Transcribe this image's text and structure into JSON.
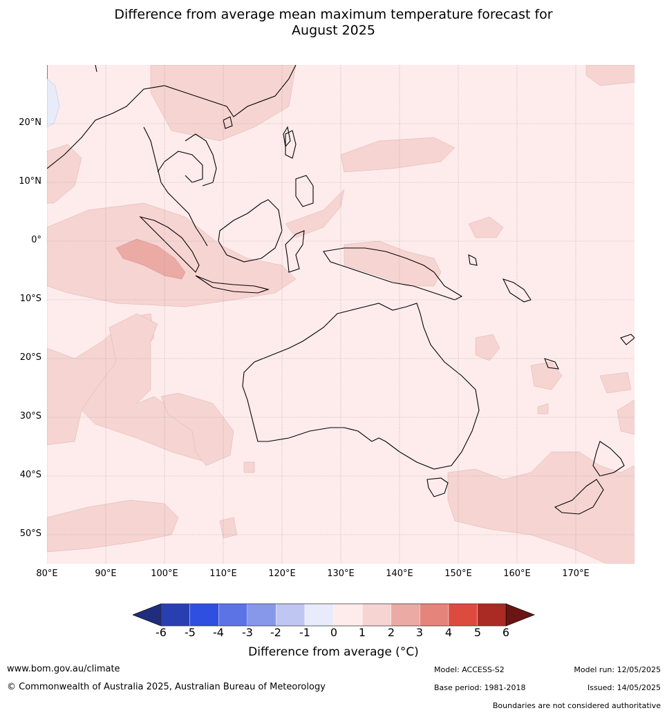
{
  "title": {
    "line1": "Difference from average mean maximum temperature forecast for",
    "line2": "August 2025"
  },
  "map": {
    "lat_labels": [
      "20°N",
      "10°N",
      "0°",
      "10°S",
      "20°S",
      "30°S",
      "40°S",
      "50°S"
    ],
    "lon_labels": [
      "80°E",
      "90°E",
      "100°E",
      "110°E",
      "120°E",
      "130°E",
      "140°E",
      "150°E",
      "160°E",
      "170°E"
    ],
    "lat_range": [
      -55,
      30
    ],
    "lon_range": [
      80,
      180
    ],
    "grid": true
  },
  "legend": {
    "ticks": [
      "-6",
      "-5",
      "-4",
      "-3",
      "-2",
      "-1",
      "0",
      "1",
      "2",
      "3",
      "4",
      "5",
      "6"
    ],
    "colors": [
      "#1f2d7c",
      "#2a3faf",
      "#2f4fe0",
      "#5b73e4",
      "#8798ea",
      "#bfc6f2",
      "#e8ebfa",
      "#fdeceb",
      "#f6d4d2",
      "#ecaaa5",
      "#e5847b",
      "#dc4b3d",
      "#a92b23",
      "#6b1414"
    ],
    "label": "Difference from average (",
    "label_unit": "°C)"
  },
  "footer": {
    "website": "www.bom.gov.au/climate",
    "copyright": "© Commonwealth of Australia 2025, Australian Bureau of Meteorology",
    "model": "Model: ACCESS-S2",
    "base_period": "Base period: 1981-2018",
    "model_run": "Model run: 12/05/2025",
    "issued": "Issued: 14/05/2025",
    "disclaimer": "Boundaries are not considered authoritative"
  }
}
